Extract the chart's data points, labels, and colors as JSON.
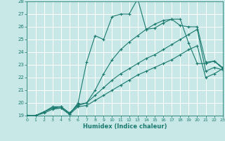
{
  "title": "",
  "xlabel": "Humidex (Indice chaleur)",
  "xlim": [
    0,
    23
  ],
  "ylim": [
    19,
    28
  ],
  "xticks": [
    0,
    1,
    2,
    3,
    4,
    5,
    6,
    7,
    8,
    9,
    10,
    11,
    12,
    13,
    14,
    15,
    16,
    17,
    18,
    19,
    20,
    21,
    22,
    23
  ],
  "yticks": [
    19,
    20,
    21,
    22,
    23,
    24,
    25,
    26,
    27,
    28
  ],
  "bg_color": "#c8e8e8",
  "line_color": "#1a7a6e",
  "grid_color": "#ffffff",
  "series": [
    {
      "x": [
        0,
        1,
        2,
        3,
        4,
        5,
        6,
        7,
        8,
        9,
        10,
        11,
        12,
        13,
        14,
        15,
        16,
        17,
        18,
        19,
        20,
        21,
        22,
        23
      ],
      "y": [
        19,
        19,
        19.3,
        19.6,
        19.6,
        19.1,
        20.0,
        23.2,
        25.3,
        25.0,
        26.8,
        27.0,
        27.0,
        28.2,
        25.8,
        25.9,
        26.3,
        26.6,
        26.1,
        26.0,
        26.0,
        23.2,
        23.3,
        22.8
      ]
    },
    {
      "x": [
        0,
        1,
        2,
        3,
        4,
        5,
        6,
        7,
        8,
        9,
        10,
        11,
        12,
        13,
        14,
        15,
        16,
        17,
        18,
        19,
        20,
        21,
        22,
        23
      ],
      "y": [
        19,
        19,
        19.3,
        19.7,
        19.7,
        19.2,
        19.9,
        20.0,
        21.0,
        22.3,
        23.4,
        24.2,
        24.8,
        25.3,
        25.8,
        26.2,
        26.5,
        26.6,
        26.6,
        24.7,
        23.1,
        23.1,
        23.3,
        22.7
      ]
    },
    {
      "x": [
        0,
        1,
        2,
        3,
        4,
        5,
        6,
        7,
        8,
        9,
        10,
        11,
        12,
        13,
        14,
        15,
        16,
        17,
        18,
        19,
        20,
        21,
        22,
        23
      ],
      "y": [
        19,
        19,
        19.3,
        19.6,
        19.7,
        19.2,
        19.8,
        20.0,
        20.6,
        21.2,
        21.8,
        22.3,
        22.7,
        23.1,
        23.5,
        23.8,
        24.2,
        24.6,
        25.0,
        25.4,
        25.8,
        22.5,
        22.8,
        22.6
      ]
    },
    {
      "x": [
        0,
        1,
        2,
        3,
        4,
        5,
        6,
        7,
        8,
        9,
        10,
        11,
        12,
        13,
        14,
        15,
        16,
        17,
        18,
        19,
        20,
        21,
        22,
        23
      ],
      "y": [
        19,
        19,
        19.2,
        19.5,
        19.6,
        19.1,
        19.7,
        19.8,
        20.2,
        20.6,
        21.0,
        21.4,
        21.8,
        22.2,
        22.5,
        22.8,
        23.1,
        23.4,
        23.8,
        24.2,
        24.5,
        22.0,
        22.3,
        22.7
      ]
    }
  ]
}
